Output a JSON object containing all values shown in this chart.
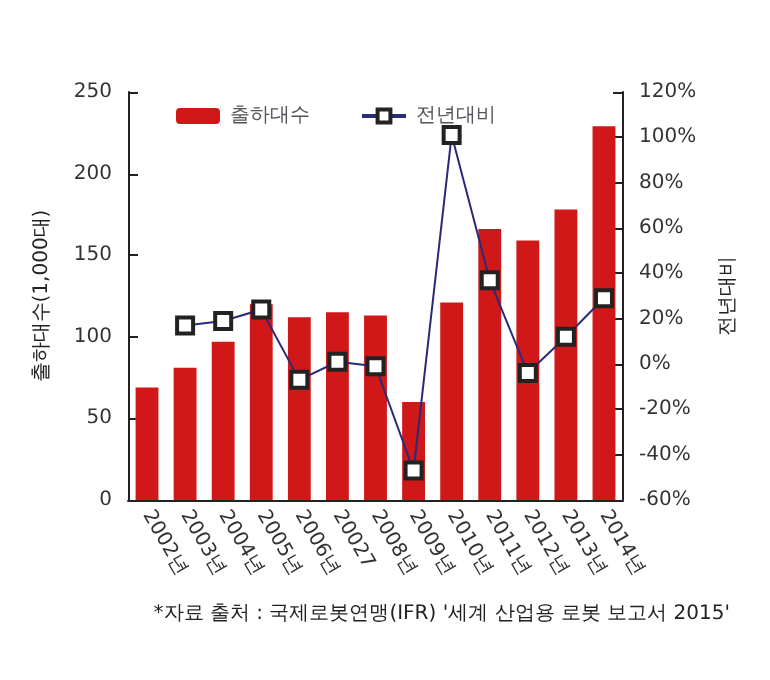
{
  "chart_data": {
    "type": "bar",
    "ylabel": "출하대수(1,000대)",
    "y2label": "전년대비",
    "categories": [
      "2002년",
      "2003년",
      "2004년",
      "2005년",
      "2006년",
      "20027",
      "2008년",
      "2009년",
      "2010년",
      "2011년",
      "2012년",
      "2013년",
      "2014년"
    ],
    "series": [
      {
        "name": "출하대수",
        "color": "#d01818",
        "values": [
          69,
          81,
          97,
          120,
          112,
          115,
          113,
          60,
          121,
          166,
          159,
          178,
          229
        ]
      },
      {
        "name": "전년대비",
        "type": "line",
        "axis": "y2",
        "color": "#2a2a7a",
        "marker": "square",
        "values": [
          null,
          17,
          19,
          24,
          -7,
          1,
          -1,
          -47,
          101,
          37,
          -4,
          12,
          29
        ]
      }
    ],
    "ylim": [
      0,
      250
    ],
    "yticks": [
      0,
      50,
      100,
      150,
      200,
      250
    ],
    "y2lim": [
      -60,
      120
    ],
    "y2ticks": [
      {
        "value": -60,
        "label": "-60%"
      },
      {
        "value": -40,
        "label": "-40%"
      },
      {
        "value": -20,
        "label": "-20%"
      },
      {
        "value": 0,
        "label": "0%"
      },
      {
        "value": 20,
        "label": "20%"
      },
      {
        "value": 40,
        "label": "40%"
      },
      {
        "value": 60,
        "label": "60%"
      },
      {
        "value": 80,
        "label": "80%"
      },
      {
        "value": 100,
        "label": "100%"
      },
      {
        "value": 120,
        "label": "120%"
      }
    ],
    "legend": "top left",
    "grid": false,
    "annotations": [
      "*자료 출처 : 국제로봇연맹(IFR) '세계 산업용 로봇 보고서 2015'"
    ]
  }
}
